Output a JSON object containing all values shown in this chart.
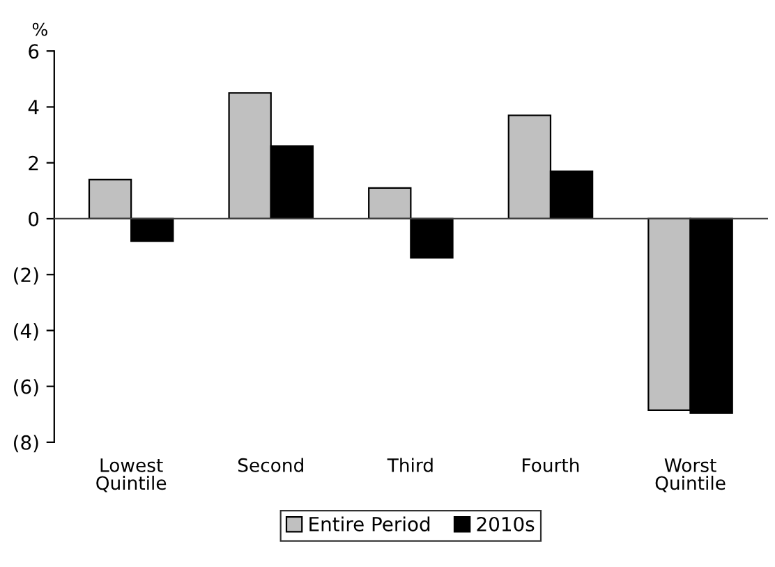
{
  "chart_data": {
    "type": "bar",
    "ylabel": "%",
    "categories": [
      "Lowest\nQuintile",
      "Second",
      "Third",
      "Fourth",
      "Worst\nQuintile"
    ],
    "series": [
      {
        "name": "Entire Period",
        "color": "#c0c0c0",
        "values": [
          1.4,
          4.5,
          1.1,
          3.7,
          -6.85
        ]
      },
      {
        "name": "2010s",
        "color": "#000000",
        "values": [
          -0.8,
          2.6,
          -1.4,
          1.7,
          -6.95
        ]
      }
    ],
    "ylim": [
      -8,
      6
    ],
    "yticks": [
      {
        "value": -8,
        "label": "(8)"
      },
      {
        "value": -6,
        "label": "(6)"
      },
      {
        "value": -4,
        "label": "(4)"
      },
      {
        "value": -2,
        "label": "(2)"
      },
      0,
      2,
      4,
      6
    ],
    "legend": "bottom"
  }
}
